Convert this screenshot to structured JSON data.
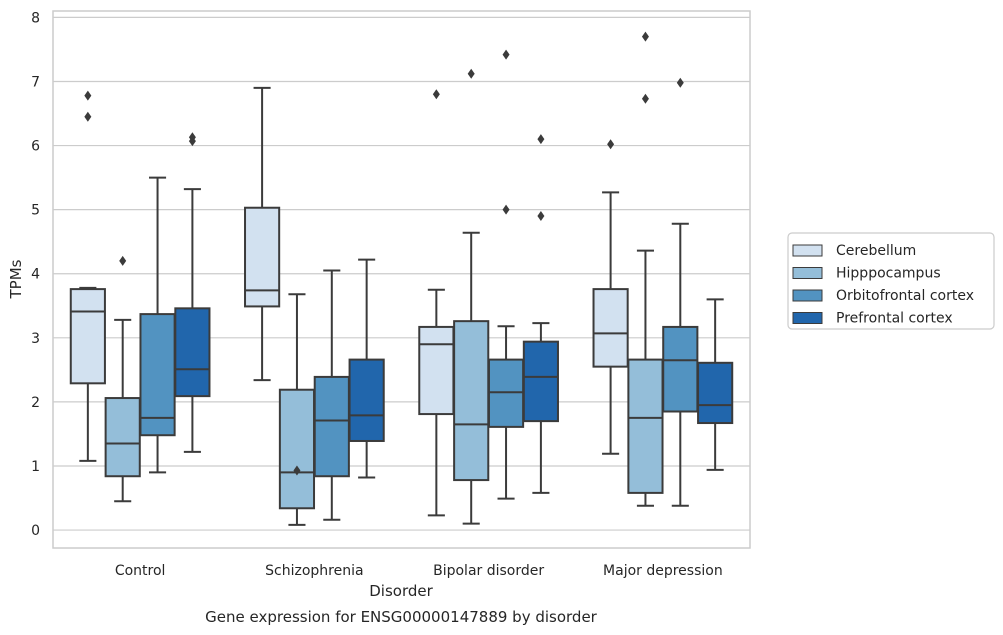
{
  "chart_data": {
    "type": "box",
    "caption": "Gene expression for ENSG00000147889 by disorder",
    "xlabel": "Disorder",
    "ylabel": "TPMs",
    "ylim": [
      -0.28,
      8.1
    ],
    "yticks": [
      0,
      1,
      2,
      3,
      4,
      5,
      6,
      7,
      8
    ],
    "grid": "horizontal",
    "legend_position": "right",
    "categories": [
      "Control",
      "Schizophrenia",
      "Bipolar disorder",
      "Major depression"
    ],
    "series": [
      {
        "name": "Cerebellum",
        "color": "#d2e1f0",
        "boxes": [
          {
            "whislo": 1.08,
            "q1": 2.29,
            "med": 3.41,
            "q3": 3.76,
            "whishi": 3.78,
            "fliers": [
              6.45,
              6.78
            ]
          },
          {
            "whislo": 2.34,
            "q1": 3.49,
            "med": 3.74,
            "q3": 5.03,
            "whishi": 6.9,
            "fliers": []
          },
          {
            "whislo": 0.23,
            "q1": 1.81,
            "med": 2.9,
            "q3": 3.17,
            "whishi": 3.75,
            "fliers": [
              6.8
            ]
          },
          {
            "whislo": 1.19,
            "q1": 2.55,
            "med": 3.07,
            "q3": 3.76,
            "whishi": 5.27,
            "fliers": [
              6.02
            ]
          }
        ]
      },
      {
        "name": "Hipppocampus",
        "color": "#94bed9",
        "boxes": [
          {
            "whislo": 0.45,
            "q1": 0.84,
            "med": 1.35,
            "q3": 2.06,
            "whishi": 3.28,
            "fliers": [
              4.2
            ]
          },
          {
            "whislo": 0.08,
            "q1": 0.34,
            "med": 0.9,
            "q3": 2.19,
            "whishi": 3.68,
            "fliers": [
              0.93
            ]
          },
          {
            "whislo": 0.1,
            "q1": 0.78,
            "med": 1.65,
            "q3": 3.26,
            "whishi": 4.64,
            "fliers": [
              7.12
            ]
          },
          {
            "whislo": 0.38,
            "q1": 0.58,
            "med": 1.75,
            "q3": 2.66,
            "whishi": 4.36,
            "fliers": [
              6.73,
              7.7
            ]
          }
        ]
      },
      {
        "name": "Orbitofrontal cortex",
        "color": "#5293c1",
        "boxes": [
          {
            "whislo": 0.9,
            "q1": 1.48,
            "med": 1.75,
            "q3": 3.37,
            "whishi": 5.5,
            "fliers": []
          },
          {
            "whislo": 0.16,
            "q1": 0.84,
            "med": 1.71,
            "q3": 2.39,
            "whishi": 4.05,
            "fliers": []
          },
          {
            "whislo": 0.49,
            "q1": 1.61,
            "med": 2.15,
            "q3": 2.66,
            "whishi": 3.18,
            "fliers": [
              5.0,
              7.42
            ]
          },
          {
            "whislo": 0.38,
            "q1": 1.85,
            "med": 2.65,
            "q3": 3.17,
            "whishi": 4.78,
            "fliers": [
              6.98
            ]
          }
        ]
      },
      {
        "name": "Prefrontal cortex",
        "color": "#2166ac",
        "boxes": [
          {
            "whislo": 1.22,
            "q1": 2.09,
            "med": 2.51,
            "q3": 3.46,
            "whishi": 5.32,
            "fliers": [
              6.07,
              6.13
            ]
          },
          {
            "whislo": 0.82,
            "q1": 1.39,
            "med": 1.79,
            "q3": 2.66,
            "whishi": 4.22,
            "fliers": []
          },
          {
            "whislo": 0.58,
            "q1": 1.7,
            "med": 2.39,
            "q3": 2.94,
            "whishi": 3.23,
            "fliers": [
              4.9,
              6.1
            ]
          },
          {
            "whislo": 0.94,
            "q1": 1.67,
            "med": 1.95,
            "q3": 2.61,
            "whishi": 3.6,
            "fliers": []
          }
        ]
      }
    ]
  }
}
